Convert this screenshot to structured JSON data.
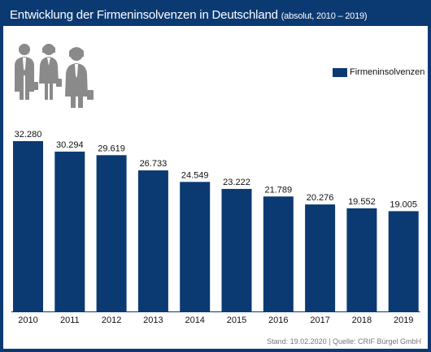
{
  "header": {
    "title": "Entwicklung der Firmeninsolvenzen in Deutschland",
    "subtitle": "(absolut, 2010 – 2019)"
  },
  "legend": {
    "label": "Firmeninsolvenzen"
  },
  "source": "Stand: 19.02.2020 | Quelle: CRIF Bürgel GmbH",
  "colors": {
    "bar": "#0b3a73",
    "header": "#0b3a73",
    "icon": "#8a8a8a"
  },
  "icons": [
    "businessman-icon",
    "businesswoman-icon",
    "businesswoman-icon"
  ],
  "chart_data": {
    "type": "bar",
    "title": "Entwicklung der Firmeninsolvenzen in Deutschland",
    "categories": [
      "2010",
      "2011",
      "2012",
      "2013",
      "2014",
      "2015",
      "2016",
      "2017",
      "2018",
      "2019"
    ],
    "series": [
      {
        "name": "Firmeninsolvenzen",
        "values": [
          32280,
          30294,
          29619,
          26733,
          24549,
          23222,
          21789,
          20276,
          19552,
          19005
        ],
        "labels": [
          "32.280",
          "30.294",
          "29.619",
          "26.733",
          "24.549",
          "23.222",
          "21.789",
          "20.276",
          "19.552",
          "19.005"
        ]
      }
    ],
    "ylim": [
      0,
      32280
    ],
    "grid": false,
    "legend_position": "top-right"
  }
}
